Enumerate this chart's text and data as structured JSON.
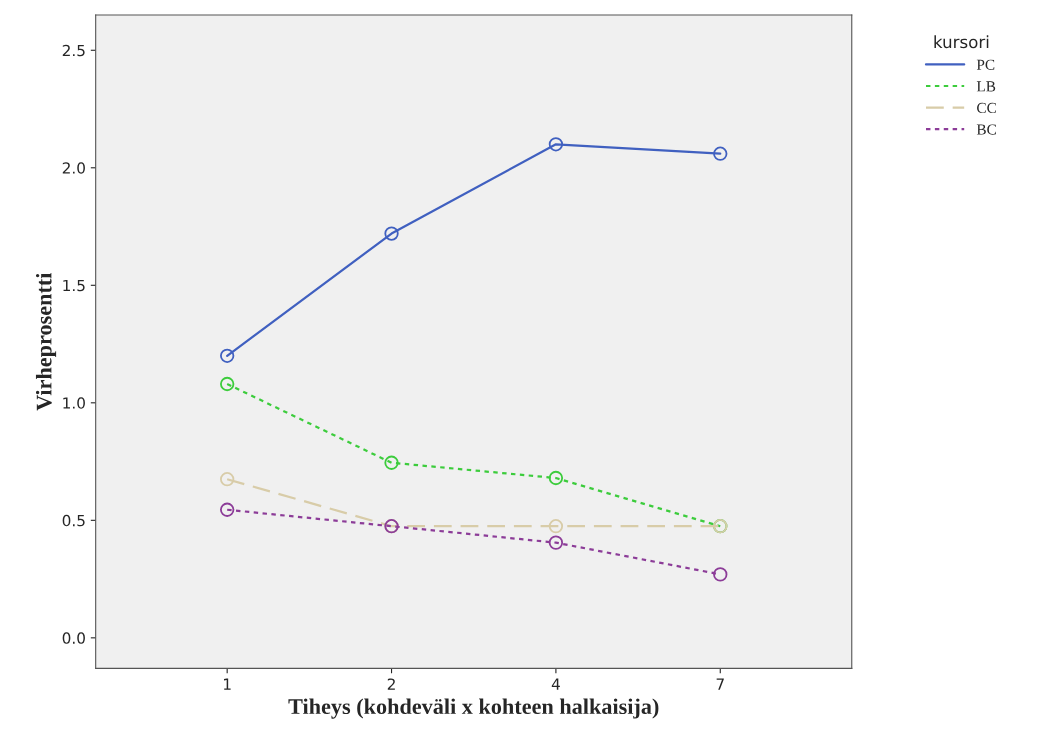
{
  "chart_data": {
    "type": "line",
    "xlabel": "Tiheys (kohdeväli x kohteen halkaisija)",
    "ylabel": "Virheprosentti",
    "legend_title": "kursori",
    "categories": [
      "1",
      "2",
      "4",
      "7"
    ],
    "series": [
      {
        "name": "PC",
        "color": "#4060c0",
        "line_style": "solid",
        "values": [
          1.2,
          1.72,
          2.1,
          2.06
        ]
      },
      {
        "name": "LB",
        "color": "#3ccc3c",
        "line_style": "dotted",
        "values": [
          1.08,
          0.745,
          0.68,
          0.475
        ]
      },
      {
        "name": "CC",
        "color": "#d8cca8",
        "line_style": "dashed",
        "values": [
          0.675,
          0.475,
          0.475,
          0.475
        ]
      },
      {
        "name": "BC",
        "color": "#8c3c98",
        "line_style": "dotted",
        "values": [
          0.545,
          0.475,
          0.405,
          0.27
        ]
      }
    ],
    "ylim": [
      -0.13,
      2.65
    ],
    "yticks": [
      {
        "value": 0,
        "label": "0.0"
      },
      0.5,
      {
        "value": 1,
        "label": "1.0"
      },
      1.5,
      {
        "value": 2,
        "label": "2.0"
      },
      2.5
    ],
    "marker": "circle",
    "grid": false,
    "legend": "top right"
  }
}
